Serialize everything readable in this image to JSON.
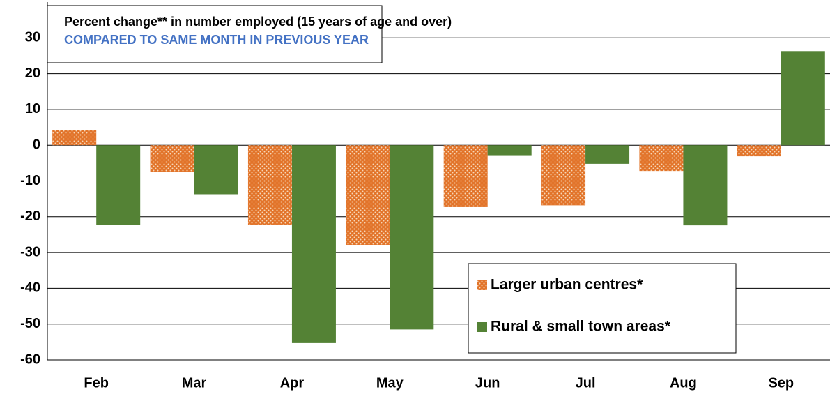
{
  "chart_data": {
    "type": "bar",
    "title": "Percent change** in number employed (15 years of age and over)",
    "subtitle": "COMPARED TO SAME MONTH IN PREVIOUS YEAR",
    "categories": [
      "Feb",
      "Mar",
      "Apr",
      "May",
      "Jun",
      "Jul",
      "Aug",
      "Sep"
    ],
    "series": [
      {
        "name": "Larger urban centres*",
        "color": "#e2742a",
        "pattern": "dotted",
        "values": [
          4.2,
          -7.5,
          -22.3,
          -28,
          -17.3,
          -16.8,
          -7.2,
          -3.1
        ]
      },
      {
        "name": "Rural & small town areas*",
        "color": "#548235",
        "values": [
          -22.3,
          -13.7,
          -55.3,
          -51.5,
          -2.8,
          -5.2,
          -22.4,
          26.3
        ]
      }
    ],
    "ylim": [
      -60,
      40
    ],
    "yticks": [
      -60,
      -50,
      -40,
      -30,
      -20,
      -10,
      0,
      10,
      20,
      30
    ],
    "grid": true,
    "legend": "lower-right"
  }
}
